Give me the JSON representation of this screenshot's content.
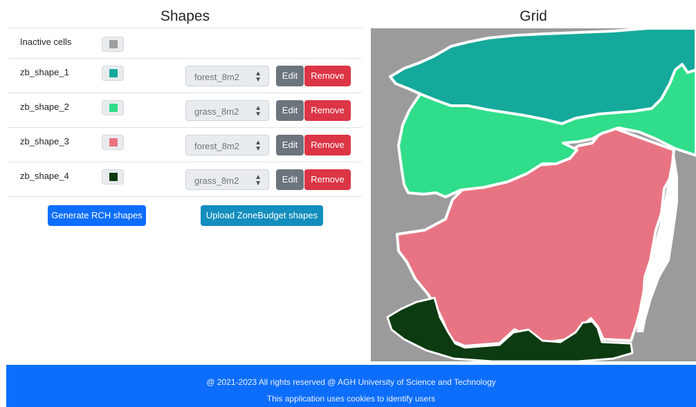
{
  "shapes_panel": {
    "title": "Shapes",
    "inactive": {
      "label": "Inactive cells",
      "color": "#9e9e9e"
    },
    "rows": [
      {
        "name": "zb_shape_1",
        "color": "#14a99b",
        "selected": "forest_8m2",
        "edit": "Edit",
        "remove": "Remove"
      },
      {
        "name": "zb_shape_2",
        "color": "#2fdd8a",
        "selected": "grass_8m2",
        "edit": "Edit",
        "remove": "Remove"
      },
      {
        "name": "zb_shape_3",
        "color": "#e87483",
        "selected": "forest_8m2",
        "edit": "Edit",
        "remove": "Remove"
      },
      {
        "name": "zb_shape_4",
        "color": "#0c3b11",
        "selected": "grass_8m2",
        "edit": "Edit",
        "remove": "Remove"
      }
    ],
    "generate_label": "Generate RCH shapes",
    "upload_label": "Upload ZoneBudget shapes"
  },
  "grid_panel": {
    "title": "Grid",
    "colors": {
      "background": "#9b9b9b",
      "zone_1": "#14a99b",
      "zone_2": "#2fdd8a",
      "zone_3": "#e87483",
      "zone_4": "#0c3b11",
      "edge": "#ffffff"
    }
  },
  "footer": {
    "line1": "@ 2021-2023 All rights reserved @ AGH University of Science and Technology",
    "line2": "This application uses cookies to identify users",
    "color": "#0d6efd"
  }
}
